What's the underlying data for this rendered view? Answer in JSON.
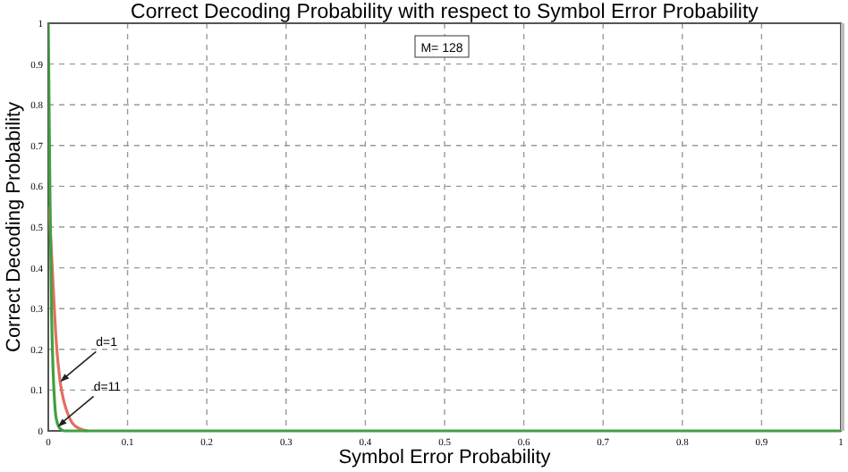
{
  "chart_data": {
    "type": "line",
    "title": "Correct Decoding Probability with respect to Symbol Error Probability",
    "xlabel": "Symbol Error Probability",
    "ylabel": "Correct Decoding Probability",
    "xlim": [
      0,
      1
    ],
    "ylim": [
      0,
      1
    ],
    "xticks": [
      0,
      0.1,
      0.2,
      0.3,
      0.4,
      0.5,
      0.6,
      0.7,
      0.8,
      0.9,
      1
    ],
    "yticks": [
      0,
      0.1,
      0.2,
      0.3,
      0.4,
      0.5,
      0.6,
      0.7,
      0.8,
      0.9,
      1
    ],
    "grid": true,
    "line_style": "solid",
    "marker": "none",
    "series": [
      {
        "color": "#e07060",
        "x": [
          0.001,
          0.005,
          0.01,
          0.015,
          0.02,
          0.025,
          0.03,
          0.04,
          0.05
        ],
        "values": [
          0.55,
          0.4,
          0.22,
          0.12,
          0.07,
          0.04,
          0.02,
          0.005,
          0
        ]
      },
      {
        "color": "#40a040",
        "x": [
          0,
          0.002,
          0.004,
          0.006,
          0.008,
          0.01,
          0.015,
          0.02,
          1
        ],
        "values": [
          1,
          0.6,
          0.3,
          0.15,
          0.07,
          0.03,
          0.005,
          0,
          0
        ]
      }
    ],
    "annotations": [
      {
        "text": "d=1",
        "x": 0.015,
        "y": 0.12
      },
      {
        "text": "d=11",
        "x": 0.012,
        "y": 0.01
      },
      "M= 128"
    ]
  }
}
